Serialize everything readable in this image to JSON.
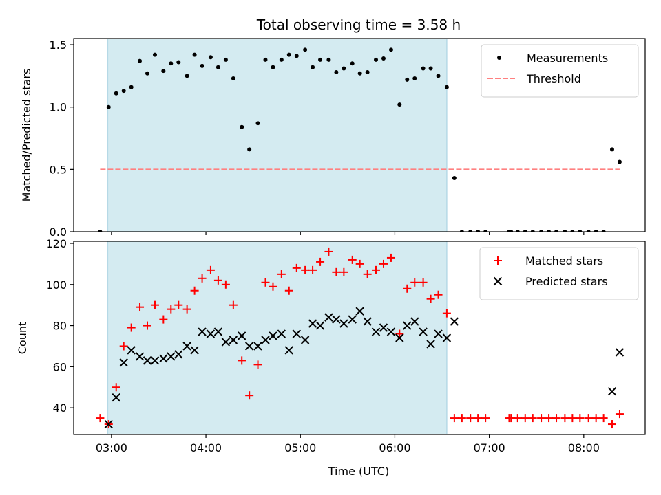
{
  "chart_data": [
    {
      "type": "scatter",
      "title": "Total observing time = 3.58 h",
      "ylabel": "Matched/Predicted stars",
      "xlabel": "",
      "x_tick_labels": [
        "03:00",
        "04:00",
        "05:00",
        "06:00",
        "07:00",
        "08:00"
      ],
      "x_ticks_hours": [
        3,
        4,
        5,
        6,
        7,
        8
      ],
      "x_range_hours": [
        2.6,
        8.65
      ],
      "y_ticks": [
        0.0,
        0.5,
        1.0,
        1.5
      ],
      "y_tick_labels": [
        "0.0",
        "0.5",
        "1.0",
        "1.5"
      ],
      "ylim": [
        0.0,
        1.55
      ],
      "shaded_interval_hours": [
        2.96,
        6.55
      ],
      "shade_color": "#d4ebf1",
      "legend_position": "top-right",
      "series": [
        {
          "name": "Measurements",
          "marker": "dot",
          "color": "#000000",
          "x": [
            2.88,
            2.97,
            3.05,
            3.13,
            3.21,
            3.3,
            3.38,
            3.46,
            3.55,
            3.63,
            3.71,
            3.8,
            3.88,
            3.96,
            4.05,
            4.13,
            4.21,
            4.29,
            4.38,
            4.46,
            4.55,
            4.63,
            4.71,
            4.8,
            4.88,
            4.96,
            5.05,
            5.13,
            5.21,
            5.3,
            5.38,
            5.46,
            5.55,
            5.63,
            5.71,
            5.8,
            5.88,
            5.96,
            6.05,
            6.13,
            6.21,
            6.3,
            6.38,
            6.46,
            6.55,
            6.63,
            6.71,
            6.8,
            6.88,
            6.96,
            7.21,
            7.23,
            7.3,
            7.38,
            7.46,
            7.55,
            7.63,
            7.71,
            7.8,
            7.88,
            7.96,
            8.05,
            8.13,
            8.21,
            8.3,
            8.38
          ],
          "y": [
            0.0,
            1.0,
            1.11,
            1.13,
            1.16,
            1.37,
            1.27,
            1.42,
            1.29,
            1.35,
            1.36,
            1.25,
            1.42,
            1.33,
            1.4,
            1.32,
            1.38,
            1.23,
            0.84,
            0.66,
            0.87,
            1.38,
            1.32,
            1.38,
            1.42,
            1.41,
            1.46,
            1.32,
            1.38,
            1.38,
            1.28,
            1.31,
            1.35,
            1.27,
            1.28,
            1.38,
            1.39,
            1.46,
            1.02,
            1.22,
            1.23,
            1.31,
            1.31,
            1.25,
            1.16,
            0.43,
            0.0,
            0.0,
            0.0,
            0.0,
            0.0,
            0.0,
            0.0,
            0.0,
            0.0,
            0.0,
            0.0,
            0.0,
            0.0,
            0.0,
            0.0,
            0.0,
            0.0,
            0.0,
            0.66,
            0.56
          ]
        },
        {
          "name": "Threshold",
          "marker": "dashed-line",
          "color": "#ff8080",
          "x": [
            2.88,
            8.38
          ],
          "y": [
            0.5,
            0.5
          ]
        }
      ]
    },
    {
      "type": "scatter",
      "title": "",
      "ylabel": "Count",
      "xlabel": "Time (UTC)",
      "x_tick_labels": [
        "03:00",
        "04:00",
        "05:00",
        "06:00",
        "07:00",
        "08:00"
      ],
      "x_ticks_hours": [
        3,
        4,
        5,
        6,
        7,
        8
      ],
      "x_range_hours": [
        2.6,
        8.65
      ],
      "y_ticks": [
        40,
        60,
        80,
        100,
        120
      ],
      "y_tick_labels": [
        "40",
        "60",
        "80",
        "100",
        "120"
      ],
      "ylim": [
        27,
        121
      ],
      "shaded_interval_hours": [
        2.96,
        6.55
      ],
      "shade_color": "#d4ebf1",
      "legend_position": "top-right",
      "series": [
        {
          "name": "Matched stars",
          "marker": "plus",
          "color": "#ff0000",
          "x": [
            2.88,
            2.97,
            3.05,
            3.13,
            3.21,
            3.3,
            3.38,
            3.46,
            3.55,
            3.63,
            3.71,
            3.8,
            3.88,
            3.96,
            4.05,
            4.13,
            4.21,
            4.29,
            4.38,
            4.46,
            4.55,
            4.63,
            4.71,
            4.8,
            4.88,
            4.96,
            5.05,
            5.13,
            5.21,
            5.3,
            5.38,
            5.46,
            5.55,
            5.63,
            5.71,
            5.8,
            5.88,
            5.96,
            6.05,
            6.13,
            6.21,
            6.3,
            6.38,
            6.46,
            6.55,
            6.63,
            6.71,
            6.8,
            6.88,
            6.96,
            7.21,
            7.23,
            7.3,
            7.38,
            7.46,
            7.55,
            7.63,
            7.71,
            7.8,
            7.88,
            7.96,
            8.05,
            8.13,
            8.21,
            8.3,
            8.38
          ],
          "y": [
            35,
            32,
            50,
            70,
            79,
            89,
            80,
            90,
            83,
            88,
            90,
            88,
            97,
            103,
            107,
            102,
            100,
            90,
            63,
            46,
            61,
            101,
            99,
            105,
            97,
            108,
            107,
            107,
            111,
            116,
            106,
            106,
            112,
            110,
            105,
            107,
            110,
            113,
            76,
            98,
            101,
            101,
            93,
            95,
            86,
            35,
            35,
            35,
            35,
            35,
            35,
            35,
            35,
            35,
            35,
            35,
            35,
            35,
            35,
            35,
            35,
            35,
            35,
            35,
            32,
            37
          ]
        },
        {
          "name": "Predicted stars",
          "marker": "x",
          "color": "#000000",
          "x": [
            2.97,
            3.05,
            3.13,
            3.21,
            3.3,
            3.38,
            3.46,
            3.55,
            3.63,
            3.71,
            3.8,
            3.88,
            3.96,
            4.05,
            4.13,
            4.21,
            4.29,
            4.38,
            4.46,
            4.55,
            4.63,
            4.71,
            4.8,
            4.88,
            4.96,
            5.05,
            5.13,
            5.21,
            5.3,
            5.38,
            5.46,
            5.55,
            5.63,
            5.71,
            5.8,
            5.88,
            5.96,
            6.05,
            6.13,
            6.21,
            6.3,
            6.38,
            6.46,
            6.55,
            6.63,
            8.3,
            8.38
          ],
          "y": [
            32,
            45,
            62,
            68,
            65,
            63,
            63,
            64,
            65,
            66,
            70,
            68,
            77,
            76,
            77,
            72,
            73,
            75,
            70,
            70,
            73,
            75,
            76,
            68,
            76,
            73,
            81,
            80,
            84,
            83,
            81,
            83,
            87,
            82,
            77,
            79,
            77,
            74,
            80,
            82,
            77,
            71,
            76,
            74,
            82,
            48,
            67
          ]
        }
      ]
    }
  ]
}
